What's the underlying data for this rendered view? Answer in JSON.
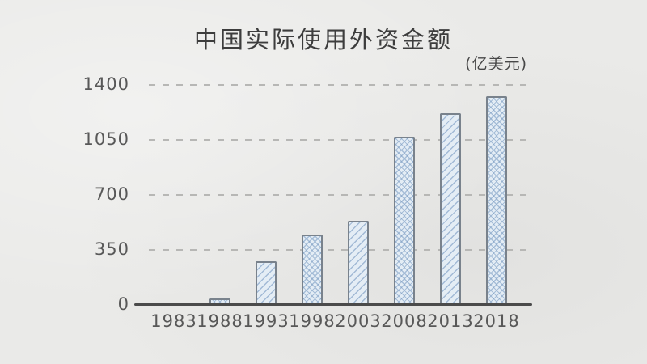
{
  "chart_data": {
    "type": "bar",
    "title": "中国实际使用外资金额",
    "unit_label": "(亿美元)",
    "categories": [
      "1983",
      "1988",
      "1993",
      "1998",
      "2003",
      "2008",
      "2013",
      "2018"
    ],
    "values": [
      10,
      40,
      280,
      450,
      535,
      1070,
      1220,
      1330
    ],
    "xlabel": "",
    "ylabel": "",
    "ylim": [
      0,
      1400
    ],
    "yticks": [
      0,
      350,
      700,
      1050,
      1400
    ],
    "grid": "horizontal-dashed",
    "legend": "none",
    "style": "hand-drawn sketch on paper",
    "colors": {
      "background": "#eaeae8",
      "title_text": "#3d3d3d",
      "tick_text": "#585858",
      "gridline": "#b7b7b5",
      "axis_line": "#4b4b4b",
      "bar_fill": "#e4edf5",
      "bar_hatch": "#7e9ec4",
      "bar_outline": "#79828c"
    }
  }
}
